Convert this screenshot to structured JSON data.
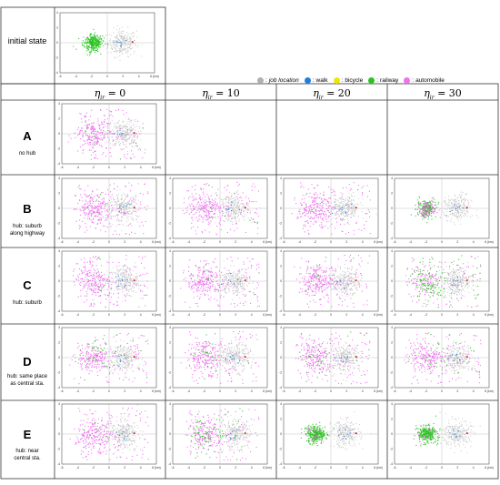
{
  "initial_state_label": "initial state",
  "legend": [
    {
      "label": "job location",
      "color": "#b0b0b0",
      "italic": true
    },
    {
      "label": "walk",
      "color": "#1e7fe0",
      "italic": false
    },
    {
      "label": "bicycle",
      "color": "#f2e600",
      "italic": false
    },
    {
      "label": "railway",
      "color": "#29c41f",
      "italic": false
    },
    {
      "label": "automobile",
      "color": "#f070f0",
      "italic": false
    }
  ],
  "columns": [
    {
      "symbol": "η",
      "sub": "ir",
      "value": "= 0"
    },
    {
      "symbol": "η",
      "sub": "ir",
      "value": "= 10"
    },
    {
      "symbol": "η",
      "sub": "ir",
      "value": "= 20"
    },
    {
      "symbol": "η",
      "sub": "ir",
      "value": "= 30"
    }
  ],
  "rows": [
    {
      "letter": "A",
      "desc": [
        "no hub"
      ]
    },
    {
      "letter": "B",
      "desc": [
        "hub: suburb",
        "along highway"
      ]
    },
    {
      "letter": "C",
      "desc": [
        "hub: suburb"
      ]
    },
    {
      "letter": "D",
      "desc": [
        "hub: same place",
        "as central sta."
      ]
    },
    {
      "letter": "E",
      "desc": [
        "hub: near",
        "central sta."
      ]
    }
  ],
  "axes": {
    "x_ticks": [
      "-6",
      "-4",
      "-2",
      "0",
      "2",
      "4",
      "6 (km)"
    ],
    "y_ticks": [
      "4",
      "2",
      "0",
      "-2",
      "-4"
    ]
  },
  "plots": {
    "initial": {
      "green_share": 1.0,
      "pink_share": 0.0
    },
    "A": [
      {
        "green_share": 0.05,
        "pink_share": 0.95
      }
    ],
    "B": [
      {
        "green_share": 0.03,
        "pink_share": 0.97
      },
      {
        "green_share": 0.03,
        "pink_share": 0.97
      },
      {
        "green_share": 0.05,
        "pink_share": 0.95
      },
      {
        "green_share": 0.55,
        "pink_share": 0.45
      }
    ],
    "C": [
      {
        "green_share": 0.03,
        "pink_share": 0.97
      },
      {
        "green_share": 0.03,
        "pink_share": 0.97
      },
      {
        "green_share": 0.04,
        "pink_share": 0.96
      },
      {
        "green_share": 0.45,
        "pink_share": 0.55
      }
    ],
    "D": [
      {
        "green_share": 0.15,
        "pink_share": 0.85
      },
      {
        "green_share": 0.1,
        "pink_share": 0.9
      },
      {
        "green_share": 0.15,
        "pink_share": 0.85
      },
      {
        "green_share": 0.1,
        "pink_share": 0.9
      }
    ],
    "E": [
      {
        "green_share": 0.05,
        "pink_share": 0.95
      },
      {
        "green_share": 0.25,
        "pink_share": 0.75
      },
      {
        "green_share": 0.85,
        "pink_share": 0.15
      },
      {
        "green_share": 0.9,
        "pink_share": 0.1
      }
    ]
  }
}
